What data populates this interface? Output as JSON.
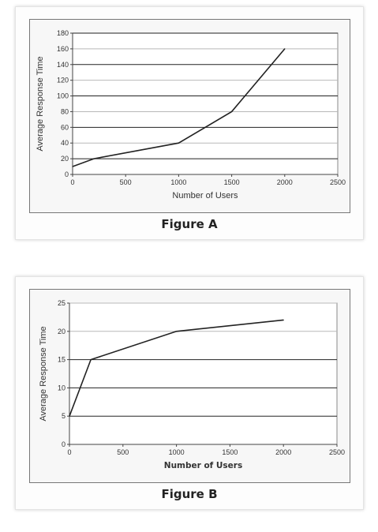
{
  "chart_data": [
    {
      "type": "line",
      "caption": "Figure A",
      "xlabel": "Number of Users",
      "ylabel": "Average Response Time",
      "xlim": [
        0,
        2500
      ],
      "ylim": [
        0,
        180
      ],
      "xticks": [
        0,
        500,
        1000,
        1500,
        2000,
        2500
      ],
      "yticks": [
        0,
        20,
        40,
        60,
        80,
        100,
        120,
        140,
        160,
        180
      ],
      "grid": true,
      "series": [
        {
          "x": [
            0,
            200,
            1000,
            1500,
            2000
          ],
          "y": [
            10,
            20,
            40,
            80,
            160
          ]
        }
      ]
    },
    {
      "type": "line",
      "caption": "Figure B",
      "xlabel": "Number of Users",
      "ylabel": "Average Response Time",
      "xlim": [
        0,
        2500
      ],
      "ylim": [
        0,
        25
      ],
      "xticks": [
        0,
        500,
        1000,
        1500,
        2000,
        2500
      ],
      "yticks": [
        0,
        5,
        10,
        15,
        20,
        25
      ],
      "grid": true,
      "series": [
        {
          "x": [
            0,
            200,
            1000,
            2000
          ],
          "y": [
            5,
            15,
            20,
            22
          ]
        }
      ]
    }
  ]
}
